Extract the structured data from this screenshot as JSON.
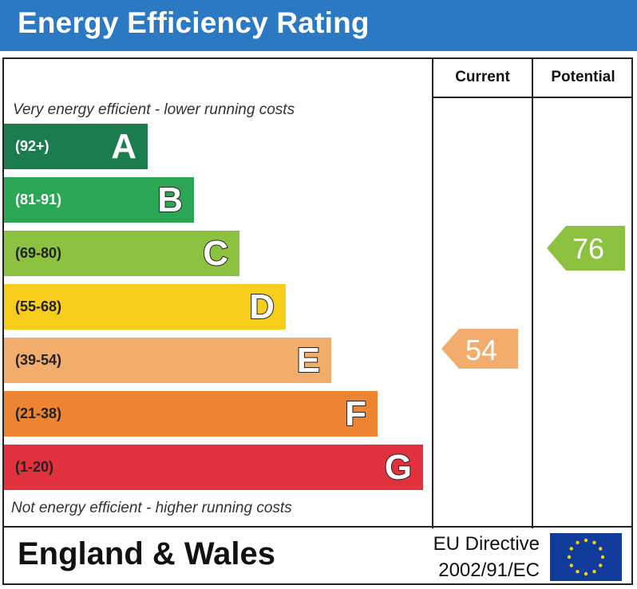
{
  "header": {
    "title": "Energy Efficiency Rating"
  },
  "columns": {
    "current": "Current",
    "potential": "Potential"
  },
  "captions": {
    "top": "Very energy efficient - lower running costs",
    "bottom": "Not energy efficient - higher running costs"
  },
  "footer": {
    "region": "England & Wales",
    "directive_line1": "EU Directive",
    "directive_line2": "2002/91/EC"
  },
  "chart_data": {
    "type": "bar",
    "categories": [
      "A",
      "B",
      "C",
      "D",
      "E",
      "F",
      "G"
    ],
    "bands": [
      {
        "letter": "A",
        "range": "(92+)",
        "color": "#1b7d4d",
        "text_light": true
      },
      {
        "letter": "B",
        "range": "(81-91)",
        "color": "#2aa655",
        "text_light": true
      },
      {
        "letter": "C",
        "range": "(69-80)",
        "color": "#8cc23f",
        "text_light": false
      },
      {
        "letter": "D",
        "range": "(55-68)",
        "color": "#f6cd1b",
        "text_light": false
      },
      {
        "letter": "E",
        "range": "(39-54)",
        "color": "#f2ac6c",
        "text_light": false
      },
      {
        "letter": "F",
        "range": "(21-38)",
        "color": "#ec8431",
        "text_light": false
      },
      {
        "letter": "G",
        "range": "(1-20)",
        "color": "#e0313c",
        "text_light": false
      }
    ],
    "current": {
      "value": 54,
      "band": "E",
      "color": "#f2ac6c"
    },
    "potential": {
      "value": 76,
      "band": "C",
      "color": "#8cc23f"
    }
  }
}
